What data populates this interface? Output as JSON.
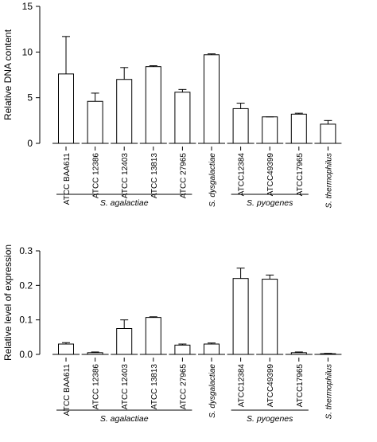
{
  "chart_data": [
    {
      "type": "bar",
      "panel": "top",
      "ylabel": "Relative DNA content",
      "ylim": [
        0,
        15
      ],
      "yticks": [
        0,
        5,
        10,
        15
      ],
      "categories": [
        "ATCC BAA611",
        "ATCC 12386",
        "ATCC 12403",
        "ATCC 13813",
        "ATCC 27965",
        "S. dysgalactiae",
        "ATCC12384",
        "ATCC49399",
        "ATCC17965",
        "S. thermophilus"
      ],
      "italic_categories": [
        "S. dysgalactiae",
        "S. thermophilus"
      ],
      "values": [
        7.6,
        4.6,
        7.0,
        8.4,
        5.6,
        9.7,
        3.8,
        2.9,
        3.2,
        2.1
      ],
      "errors": [
        4.1,
        0.9,
        1.3,
        0.1,
        0.3,
        0.1,
        0.6,
        0.0,
        0.1,
        0.4
      ],
      "groups": [
        {
          "label": "S. agalactiae",
          "from": 0,
          "to": 4
        },
        {
          "label": "S. pyogenes",
          "from": 6,
          "to": 8
        }
      ]
    },
    {
      "type": "bar",
      "panel": "bottom",
      "ylabel": "Relative level of expression",
      "ylim": [
        0,
        0.3
      ],
      "yticks": [
        0.0,
        0.1,
        0.2,
        0.3
      ],
      "categories": [
        "ATCC BAA611",
        "ATCC 12386",
        "ATCC 12403",
        "ATCC 13813",
        "ATCC 27965",
        "S. dysgalactiae",
        "ATCC12384",
        "ATCC49399",
        "ATCC17965",
        "S. thermophilus"
      ],
      "italic_categories": [
        "S. dysgalactiae",
        "S. thermophilus"
      ],
      "values": [
        0.03,
        0.005,
        0.075,
        0.107,
        0.027,
        0.03,
        0.22,
        0.218,
        0.005,
        0.002
      ],
      "errors": [
        0.004,
        0.002,
        0.025,
        0.002,
        0.003,
        0.003,
        0.03,
        0.012,
        0.002,
        0.001
      ],
      "groups": [
        {
          "label": "S. agalactiae",
          "from": 0,
          "to": 4
        },
        {
          "label": "S. pyogenes",
          "from": 6,
          "to": 8
        }
      ]
    }
  ]
}
